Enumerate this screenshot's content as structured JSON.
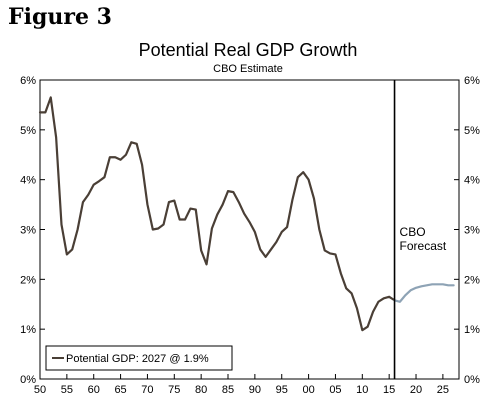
{
  "figure_label": "Figure 3",
  "chart_data": {
    "type": "line",
    "title": "Potential Real GDP Growth",
    "subtitle": "CBO Estimate",
    "xlabel": "",
    "ylabel": "",
    "xlim": [
      1950,
      2028
    ],
    "ylim": [
      0,
      6
    ],
    "x_ticks": [
      {
        "value": 1950,
        "label": "50"
      },
      {
        "value": 1955,
        "label": "55"
      },
      {
        "value": 1960,
        "label": "60"
      },
      {
        "value": 1965,
        "label": "65"
      },
      {
        "value": 1970,
        "label": "70"
      },
      {
        "value": 1975,
        "label": "75"
      },
      {
        "value": 1980,
        "label": "80"
      },
      {
        "value": 1985,
        "label": "85"
      },
      {
        "value": 1990,
        "label": "90"
      },
      {
        "value": 1995,
        "label": "95"
      },
      {
        "value": 2000,
        "label": "00"
      },
      {
        "value": 2005,
        "label": "05"
      },
      {
        "value": 2010,
        "label": "10"
      },
      {
        "value": 2015,
        "label": "15"
      },
      {
        "value": 2020,
        "label": "20"
      },
      {
        "value": 2025,
        "label": "25"
      }
    ],
    "y_ticks": [
      {
        "value": 0,
        "label": "0%"
      },
      {
        "value": 1,
        "label": "1%"
      },
      {
        "value": 2,
        "label": "2%"
      },
      {
        "value": 3,
        "label": "3%"
      },
      {
        "value": 4,
        "label": "4%"
      },
      {
        "value": 5,
        "label": "5%"
      },
      {
        "value": 6,
        "label": "6%"
      }
    ],
    "grid": false,
    "legend": {
      "placement": "bottom-left",
      "entry": "Potential GDP: 2027 @ 1.9%"
    },
    "annotation": {
      "x": 2016,
      "lines": [
        "CBO",
        "Forecast"
      ]
    },
    "series": [
      {
        "name": "Potential GDP: 2027 @ 1.9%",
        "color": "#4a3f36",
        "x": [
          1950,
          1951,
          1952,
          1953,
          1954,
          1955,
          1956,
          1957,
          1958,
          1959,
          1960,
          1961,
          1962,
          1963,
          1964,
          1965,
          1966,
          1967,
          1968,
          1969,
          1970,
          1971,
          1972,
          1973,
          1974,
          1975,
          1976,
          1977,
          1978,
          1979,
          1980,
          1981,
          1982,
          1983,
          1984,
          1985,
          1986,
          1987,
          1988,
          1989,
          1990,
          1991,
          1992,
          1993,
          1994,
          1995,
          1996,
          1997,
          1998,
          1999,
          2000,
          2001,
          2002,
          2003,
          2004,
          2005,
          2006,
          2007,
          2008,
          2009,
          2010,
          2011,
          2012,
          2013,
          2014,
          2015,
          2016
        ],
        "y": [
          5.35,
          5.35,
          5.65,
          4.85,
          3.1,
          2.5,
          2.6,
          3.0,
          3.55,
          3.7,
          3.9,
          3.97,
          4.05,
          4.45,
          4.45,
          4.4,
          4.5,
          4.75,
          4.72,
          4.3,
          3.5,
          3.0,
          3.02,
          3.1,
          3.55,
          3.58,
          3.2,
          3.2,
          3.42,
          3.4,
          2.58,
          2.3,
          3.02,
          3.3,
          3.5,
          3.77,
          3.75,
          3.55,
          3.32,
          3.15,
          2.95,
          2.6,
          2.45,
          2.6,
          2.75,
          2.95,
          3.05,
          3.6,
          4.05,
          4.15,
          4.0,
          3.62,
          3.0,
          2.58,
          2.52,
          2.5,
          2.12,
          1.82,
          1.72,
          1.42,
          0.98,
          1.05,
          1.35,
          1.55,
          1.62,
          1.65,
          1.58
        ]
      },
      {
        "name": "CBO Forecast",
        "color": "#8ea3b5",
        "x": [
          2016,
          2017,
          2018,
          2019,
          2020,
          2021,
          2022,
          2023,
          2024,
          2025,
          2026,
          2027
        ],
        "y": [
          1.58,
          1.55,
          1.68,
          1.78,
          1.83,
          1.86,
          1.88,
          1.9,
          1.9,
          1.9,
          1.88,
          1.88
        ]
      }
    ]
  }
}
